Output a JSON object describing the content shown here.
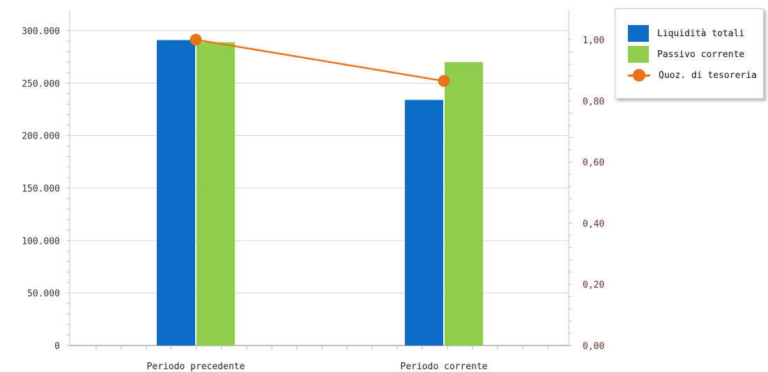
{
  "chart_data": {
    "type": "bar",
    "categories": [
      "Periodo precedente",
      "Periodo corrente"
    ],
    "series": [
      {
        "name": "Liquidità totali",
        "type": "bar",
        "axis": "left",
        "color": "#0a6cc4",
        "values": [
          291000,
          234000
        ]
      },
      {
        "name": "Passivo corrente",
        "type": "bar",
        "axis": "left",
        "color": "#8fce4c",
        "values": [
          289000,
          270000
        ]
      },
      {
        "name": "Quoz. di tesoreria",
        "type": "line",
        "axis": "right",
        "color": "#e8731a",
        "values": [
          1.0,
          0.865
        ]
      }
    ],
    "left_axis": {
      "ylim": [
        0,
        300000
      ],
      "ticks": [
        "0",
        "50.000",
        "100.000",
        "150.000",
        "200.000",
        "250.000",
        "300.000"
      ],
      "tick_values": [
        0,
        50000,
        100000,
        150000,
        200000,
        250000,
        300000
      ]
    },
    "right_axis": {
      "ylim": [
        0,
        1.0
      ],
      "ticks": [
        "0,00",
        "0,20",
        "0,40",
        "0,60",
        "0,80",
        "1,00"
      ],
      "tick_values": [
        0,
        0.2,
        0.4,
        0.6,
        0.8,
        1.0
      ],
      "color": "#7a2a2a"
    },
    "grid": true,
    "legend_position": "top-right"
  }
}
